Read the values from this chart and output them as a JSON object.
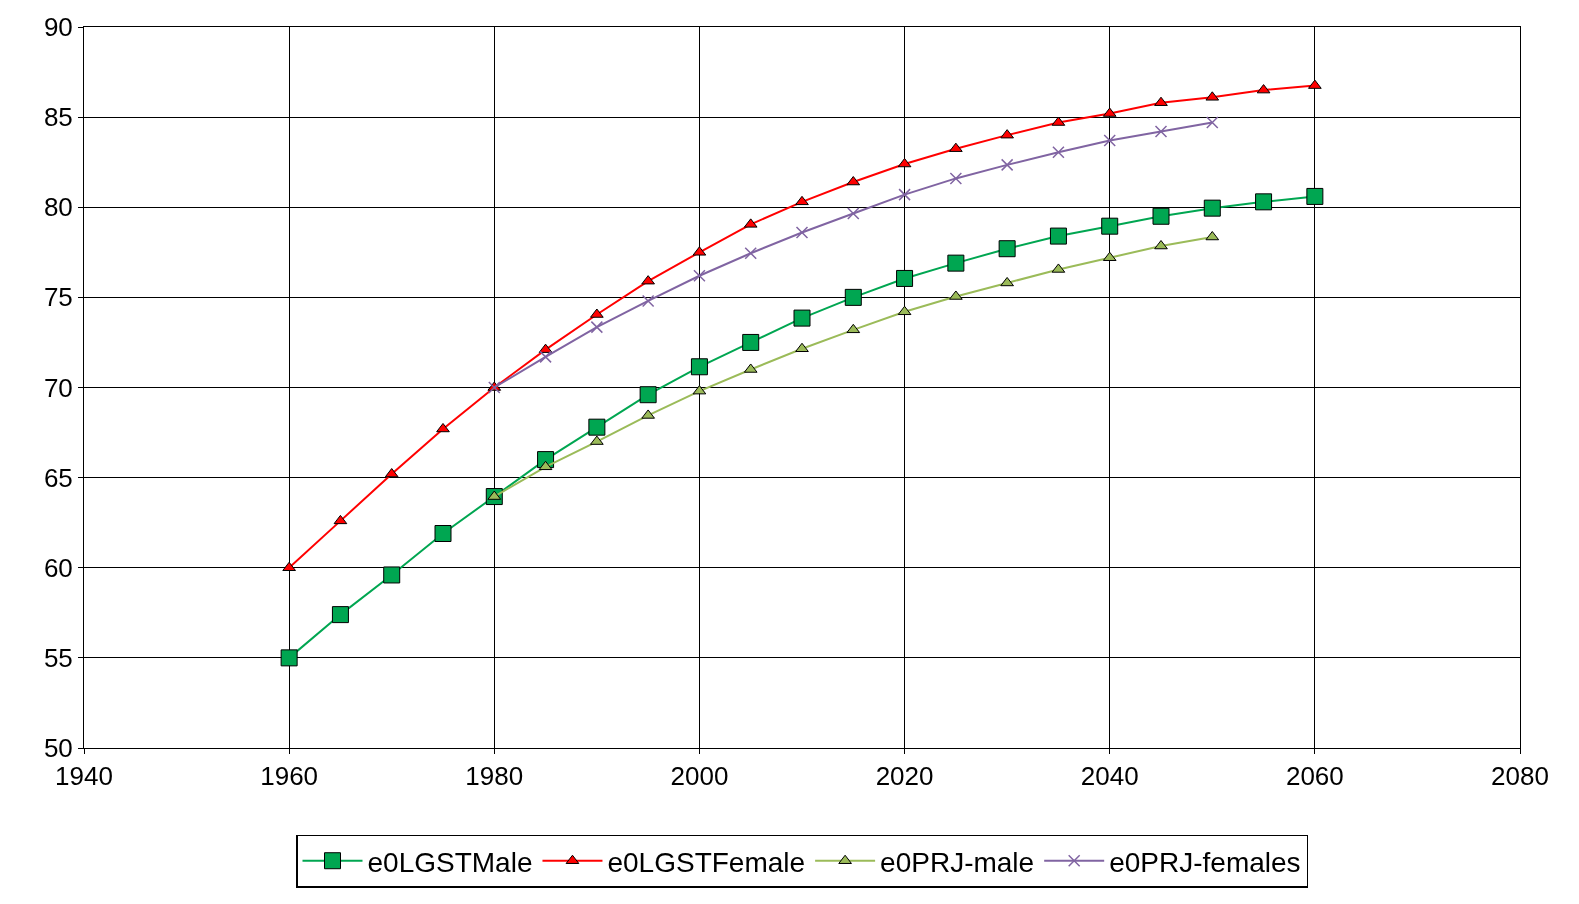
{
  "chart_data": {
    "type": "line",
    "x": [
      1960,
      1965,
      1970,
      1975,
      1980,
      1985,
      1990,
      1995,
      2000,
      2005,
      2010,
      2015,
      2020,
      2025,
      2030,
      2035,
      2040,
      2045,
      2050,
      2055,
      2060
    ],
    "series": [
      {
        "name": "e0LGSTMale",
        "color": "#00a651",
        "marker": "square",
        "values": [
          55.0,
          57.4,
          59.6,
          61.9,
          63.95,
          66.0,
          67.8,
          69.6,
          71.15,
          72.5,
          73.85,
          75.0,
          76.05,
          76.9,
          77.7,
          78.4,
          78.95,
          79.5,
          79.95,
          80.3,
          80.6
        ]
      },
      {
        "name": "e0LGSTFemale",
        "color": "#ff0000",
        "marker": "triangle",
        "values": [
          60.0,
          62.6,
          65.2,
          67.7,
          70.0,
          72.1,
          74.05,
          75.9,
          77.5,
          79.05,
          80.3,
          81.4,
          82.4,
          83.25,
          84.0,
          84.7,
          85.2,
          85.8,
          86.1,
          86.5,
          86.75
        ]
      },
      {
        "name": "e0PRJ-male",
        "color": "#9bbb59",
        "marker": "triangle",
        "x": [
          1980,
          1985,
          1990,
          1995,
          2000,
          2005,
          2010,
          2015,
          2020,
          2025,
          2030,
          2035,
          2040,
          2045,
          2050
        ],
        "values": [
          63.95,
          65.6,
          67.0,
          68.45,
          69.8,
          71.0,
          72.15,
          73.2,
          74.2,
          75.05,
          75.8,
          76.55,
          77.2,
          77.85,
          78.35
        ]
      },
      {
        "name": "e0PRJ-females",
        "color": "#8064a2",
        "marker": "cross",
        "x": [
          1980,
          1985,
          1990,
          1995,
          2000,
          2005,
          2010,
          2015,
          2020,
          2025,
          2030,
          2035,
          2040,
          2045,
          2050
        ],
        "values": [
          70.0,
          71.7,
          73.35,
          74.8,
          76.2,
          77.45,
          78.6,
          79.65,
          80.7,
          81.6,
          82.35,
          83.05,
          83.7,
          84.2,
          84.7
        ]
      }
    ],
    "xlim": [
      1940,
      2080
    ],
    "xticks": [
      1940,
      1960,
      1980,
      2000,
      2020,
      2040,
      2060,
      2080
    ],
    "ylim": [
      50,
      90
    ],
    "yticks": [
      50,
      55,
      60,
      65,
      70,
      75,
      80,
      85,
      90
    ],
    "grid": true,
    "legend": "bottom"
  }
}
